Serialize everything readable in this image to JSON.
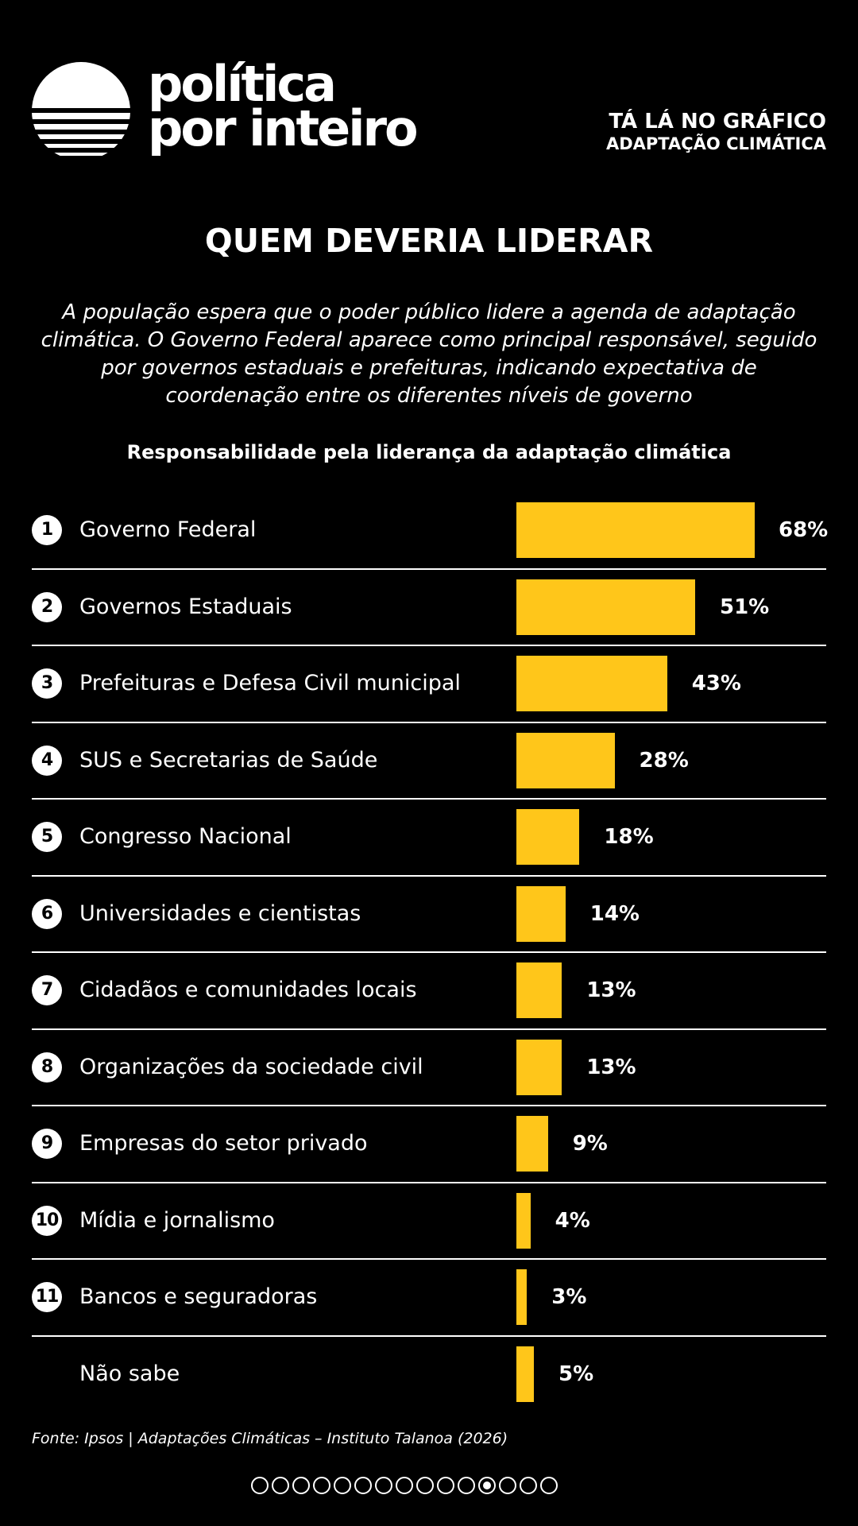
{
  "brand": {
    "line1": "política",
    "line2": "por inteiro",
    "logo_icon": "sun-over-water-icon"
  },
  "tag": {
    "line1": "TÁ LÁ NO GRÁFICO",
    "line2": "ADAPTAÇÃO CLIMÁTICA"
  },
  "title": "QUEM DEVERIA LIDERAR",
  "lead": "A população espera que o poder público lidere a agenda de adaptação climática. O Governo Federal aparece como principal responsável, seguido por governos estaduais e prefeituras, indicando expectativa de coordenação entre os diferentes níveis de governo",
  "colors": {
    "background": "#000000",
    "bar": "#FFC61A",
    "text": "#FFFFFF"
  },
  "chart_data": {
    "type": "bar",
    "orientation": "horizontal",
    "title": "Responsabilidade pela liderança da adaptação climática",
    "unit": "%",
    "xlim": [
      0,
      100
    ],
    "categories": [
      "Governo Federal",
      "Governos Estaduais",
      "Prefeituras e Defesa Civil municipal",
      "SUS e Secretarias de Saúde",
      "Congresso Nacional",
      "Universidades e cientistas",
      "Cidadãos e comunidades locais",
      "Organizações da sociedade civil",
      "Empresas do setor privado",
      "Mídia e jornalismo",
      "Bancos e seguradoras",
      "Não sabe"
    ],
    "ranks": [
      "1",
      "2",
      "3",
      "4",
      "5",
      "6",
      "7",
      "8",
      "9",
      "10",
      "11",
      ""
    ],
    "values": [
      68,
      51,
      43,
      28,
      18,
      14,
      13,
      13,
      9,
      4,
      3,
      5
    ],
    "value_labels": [
      "68%",
      "51%",
      "43%",
      "28%",
      "18%",
      "14%",
      "13%",
      "13%",
      "9%",
      "4%",
      "3%",
      "5%"
    ]
  },
  "source": "Fonte: Ipsos | Adaptações Climáticas – Instituto Talanoa (2026)",
  "pager": {
    "total": 15,
    "current": 12
  }
}
